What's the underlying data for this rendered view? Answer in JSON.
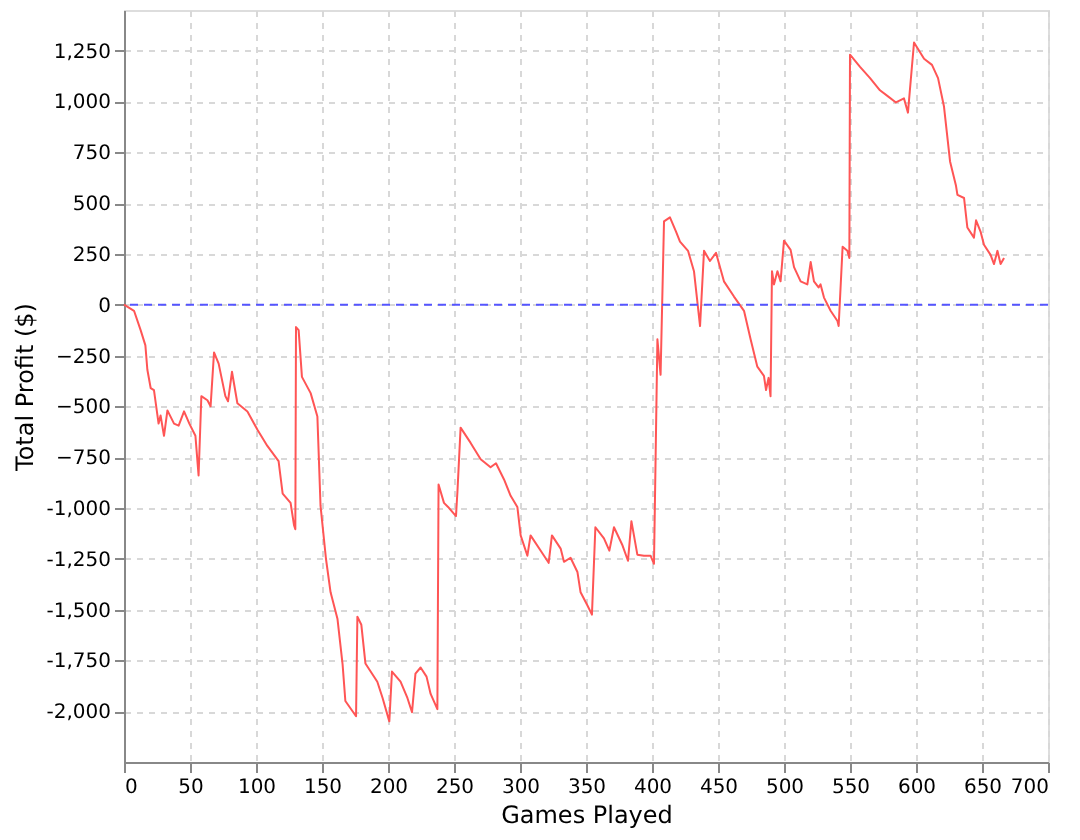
{
  "chart_data": {
    "type": "line",
    "xlabel": "Games Played",
    "ylabel": "Total Profit ($)",
    "x": [
      0,
      7.6,
      12.6,
      16.2,
      17.7,
      20.2,
      22.7,
      26.2,
      27.7,
      30.3,
      32.9,
      37.9,
      41.4,
      45.5,
      49.5,
      54.1,
      56.5,
      58.6,
      63.2,
      65.6,
      68.2,
      71.7,
      76.8,
      78.8,
      81.8,
      85.9,
      93.5,
      101.1,
      108.6,
      117.1,
      120.2,
      126.2,
      128.8,
      129.8,
      130.3,
      132.3,
      134.8,
      141.4,
      146.5,
      148.9,
      153,
      156.5,
      161.7,
      165.6,
      167.7,
      175.8,
      176.8,
      179.8,
      182.9,
      191.9,
      195.9,
      201,
      203,
      209.5,
      214.7,
      218.2,
      220.8,
      224.7,
      229.2,
      232.3,
      237.4,
      238.3,
      242.4,
      245.5,
      251.5,
      252.6,
      255,
      262.6,
      270.2,
      277.7,
      281.8,
      287.9,
      292.9,
      298,
      300.5,
      305.6,
      308,
      318.2,
      321.7,
      324.2,
      330.8,
      333.3,
      338.3,
      343.5,
      345.9,
      351.1,
      354.5,
      357.1,
      363.6,
      367.7,
      371.2,
      377.7,
      381.8,
      384.4,
      388.9,
      393.9,
      398.9,
      401.5,
      404.1,
      406.5,
      409.1,
      413.6,
      418.2,
      421.2,
      427.3,
      431.8,
      436.4,
      439.4,
      443.9,
      448.5,
      454.5,
      462.1,
      469.7,
      474.7,
      479.8,
      484.8,
      486.4,
      488.3,
      489.8,
      490.9,
      492.4,
      495,
      497.4,
      500,
      505,
      507.6,
      512.6,
      517.7,
      520.2,
      522.7,
      526.2,
      527.7,
      530.3,
      535.3,
      540.5,
      541.4,
      544.4,
      548,
      549.5,
      550,
      557.6,
      565.2,
      572.7,
      578.8,
      584.8,
      590.9,
      593.9,
      598.5,
      606.1,
      612.1,
      616.7,
      621.2,
      625.8,
      630.3,
      631.4,
      636.4,
      638.9,
      643.9,
      645.5,
      648.9,
      651.5,
      656.5,
      659.1,
      661.7,
      664.1,
      666.7
    ],
    "series": [
      {
        "color": "#ff5555",
        "values": [
          0,
          -30,
          -125,
          -200,
          -320,
          -410,
          -420,
          -585,
          -545,
          -645,
          -520,
          -585,
          -595,
          -525,
          -585,
          -645,
          -840,
          -450,
          -470,
          -500,
          -235,
          -290,
          -450,
          -475,
          -330,
          -485,
          -525,
          -615,
          -695,
          -770,
          -930,
          -975,
          -1085,
          -1105,
          -110,
          -125,
          -355,
          -435,
          -550,
          -990,
          -1250,
          -1415,
          -1545,
          -1770,
          -1950,
          -2025,
          -1535,
          -1575,
          -1765,
          -1855,
          -1935,
          -2050,
          -1805,
          -1855,
          -1935,
          -2005,
          -1815,
          -1785,
          -1830,
          -1915,
          -1990,
          -885,
          -975,
          -995,
          -1040,
          -920,
          -605,
          -680,
          -760,
          -800,
          -780,
          -860,
          -940,
          -995,
          -1135,
          -1235,
          -1135,
          -1235,
          -1270,
          -1135,
          -1200,
          -1265,
          -1245,
          -1315,
          -1415,
          -1480,
          -1525,
          -1095,
          -1150,
          -1210,
          -1095,
          -1185,
          -1260,
          -1065,
          -1230,
          -1235,
          -1235,
          -1275,
          -170,
          -345,
          410,
          430,
          360,
          310,
          265,
          165,
          -105,
          265,
          215,
          255,
          115,
          40,
          -30,
          -170,
          -305,
          -350,
          -420,
          -360,
          -450,
          165,
          100,
          165,
          115,
          315,
          270,
          185,
          115,
          100,
          210,
          115,
          85,
          100,
          35,
          -30,
          -80,
          -105,
          285,
          265,
          230,
          1230,
          1170,
          1115,
          1055,
          1025,
          995,
          1015,
          945,
          1290,
          1210,
          1180,
          1115,
          975,
          705,
          585,
          540,
          525,
          380,
          330,
          415,
          360,
          295,
          245,
          200,
          265,
          200,
          230
        ]
      }
    ],
    "xlim": [
      0,
      700
    ],
    "xticks": [
      0,
      50,
      100,
      150,
      200,
      250,
      300,
      350,
      400,
      450,
      500,
      550,
      600,
      650,
      700
    ],
    "ylim": [
      -2250,
      1450
    ],
    "yticks": [
      {
        "value": -2000,
        "label": "-2,000"
      },
      {
        "value": -1750,
        "label": "-1,750"
      },
      {
        "value": -1500,
        "label": "-1,500"
      },
      {
        "value": -1250,
        "label": "-1,250"
      },
      {
        "value": -1000,
        "label": "-1,000"
      },
      -750,
      -500,
      -250,
      0,
      250,
      500,
      750,
      {
        "value": 1000,
        "label": "1,000"
      },
      {
        "value": 1250,
        "label": "1,250"
      }
    ],
    "ref_lines": [
      {
        "axis": "y",
        "value": 0,
        "color": "#5555ff",
        "line_style": "dashed"
      }
    ],
    "grid": true,
    "marker": "none",
    "line_style": "solid"
  }
}
